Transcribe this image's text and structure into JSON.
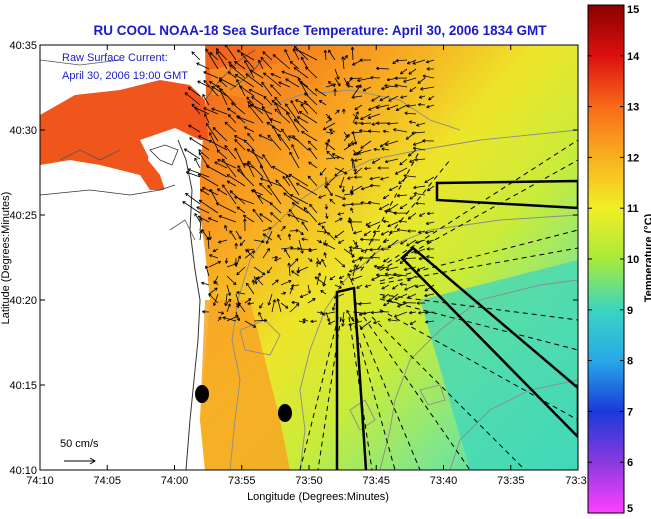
{
  "title": "RU COOL  NOAA-18  Sea Surface Temperature:  April 30, 2006 1834 GMT",
  "annotation": {
    "line1": "Raw Surface Current:",
    "line2": "April 30, 2006 19:00 GMT"
  },
  "axes": {
    "x_label": "Longitude (Degrees:Minutes)",
    "y_label": "Latitude (Degrees:Minutes)",
    "x_ticks": [
      "74:10",
      "74:05",
      "74:00",
      "73:55",
      "73:50",
      "73:45",
      "73:40",
      "73:35",
      "73:3"
    ],
    "y_ticks": [
      "40:35",
      "40:30",
      "40:25",
      "40:20",
      "40:15",
      "40:10"
    ]
  },
  "scale_arrow": {
    "label": "50 cm/s"
  },
  "colorbar": {
    "label": "Temperature (°C)",
    "ticks": [
      "15",
      "14",
      "13",
      "12",
      "11",
      "10",
      "9",
      "8",
      "7",
      "6",
      "5"
    ],
    "range": [
      5,
      15
    ]
  },
  "colors": {
    "title_text": "#1a1acc",
    "land": "#ffffff",
    "vectors": "#000000"
  }
}
